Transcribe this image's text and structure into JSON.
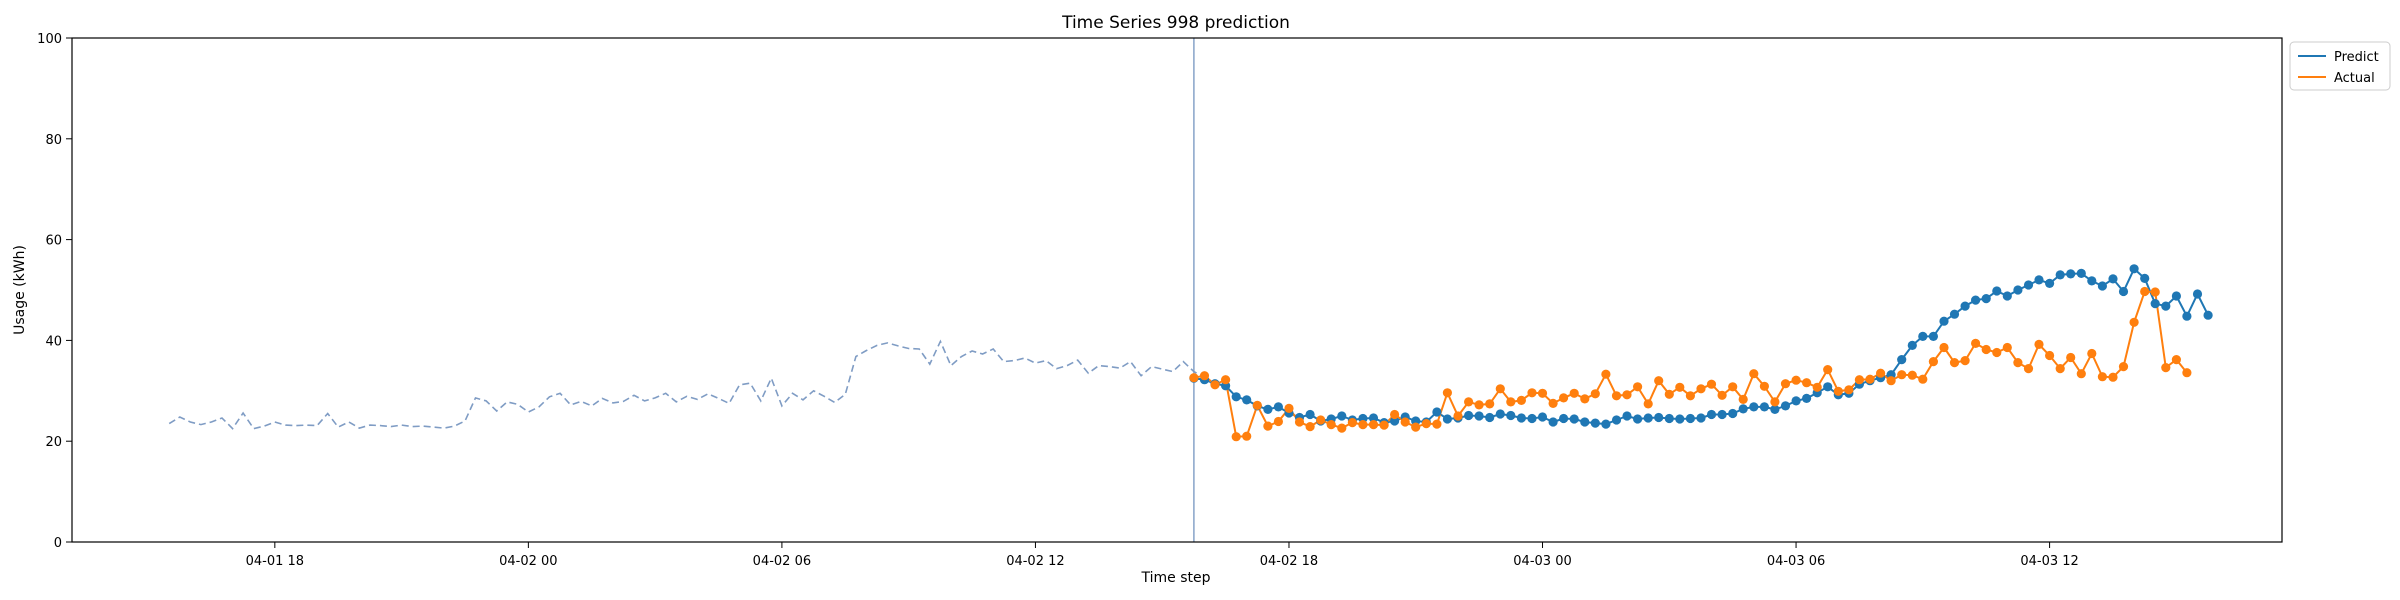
{
  "colors": {
    "predict": "#1f77b4",
    "actual": "#ff7f0e",
    "history": "#7f9cc4",
    "split_line": "#7f9cc4"
  },
  "chart_data": {
    "type": "line",
    "title": "Time Series 998 prediction",
    "xlabel": "Time step",
    "ylabel": "Usage (kWh)",
    "x_unit": "hours",
    "x_ticks": [
      {
        "label": "04-01 18",
        "x": 0
      },
      {
        "label": "04-02 00",
        "x": 6
      },
      {
        "label": "04-02 06",
        "x": 12
      },
      {
        "label": "04-02 12",
        "x": 18
      },
      {
        "label": "04-02 18",
        "x": 24
      },
      {
        "label": "04-03 00",
        "x": 30
      },
      {
        "label": "04-03 06",
        "x": 36
      },
      {
        "label": "04-03 12",
        "x": 42
      }
    ],
    "y_ticks": [
      0,
      20,
      40,
      60,
      80,
      100
    ],
    "xlim": [
      -4.8,
      47.5
    ],
    "ylim": [
      0,
      100
    ],
    "grid": false,
    "legend_position": "outside top-right",
    "split_x": 21.75,
    "history": {
      "x_start": -2.5,
      "step": 0.25,
      "values": [
        23.5,
        24.8,
        23.8,
        23.3,
        23.8,
        24.6,
        22.5,
        25.6,
        22.5,
        23.0,
        23.8,
        23.2,
        23.1,
        23.2,
        23.1,
        25.5,
        22.8,
        23.8,
        22.6,
        23.2,
        23.1,
        22.9,
        23.2,
        22.9,
        23.0,
        22.8,
        22.6,
        23.0,
        24.0,
        28.6,
        28.0,
        26.0,
        27.8,
        27.3,
        25.8,
        26.8,
        28.8,
        29.5,
        27.2,
        27.9,
        27.0,
        28.5,
        27.6,
        27.9,
        29.1,
        28.0,
        28.6,
        29.5,
        27.8,
        28.9,
        28.3,
        29.4,
        28.5,
        27.5,
        31.2,
        31.5,
        28.0,
        32.5,
        27.0,
        29.5,
        28.2,
        30.0,
        28.9,
        27.7,
        29.3,
        36.8,
        38.0,
        39.0,
        39.5,
        38.9,
        38.4,
        38.3,
        35.3,
        39.8,
        35.0,
        36.8,
        37.9,
        37.3,
        38.3,
        35.8,
        36.0,
        36.5,
        35.5,
        36.0,
        34.4,
        35.0,
        36.1,
        33.5,
        35.0,
        34.8,
        34.5,
        35.8,
        33.0,
        34.8,
        34.3,
        33.8,
        35.8,
        33.8,
        32.6
      ]
    },
    "series": [
      {
        "name": "Predict",
        "x_start": 21.75,
        "step": 0.25,
        "values": [
          32.5,
          32.2,
          31.4,
          31.0,
          28.8,
          28.2,
          27.0,
          26.3,
          26.8,
          25.6,
          24.7,
          25.3,
          24.0,
          24.4,
          25.0,
          24.2,
          24.5,
          24.6,
          23.7,
          24.0,
          24.8,
          24.0,
          23.8,
          25.8,
          24.4,
          24.6,
          25.1,
          25.0,
          24.7,
          25.4,
          25.1,
          24.6,
          24.5,
          24.8,
          23.8,
          24.5,
          24.4,
          23.8,
          23.6,
          23.4,
          24.2,
          25.0,
          24.4,
          24.6,
          24.7,
          24.5,
          24.4,
          24.5,
          24.6,
          25.3,
          25.3,
          25.5,
          26.4,
          26.8,
          26.8,
          26.3,
          27.0,
          28.0,
          28.5,
          29.6,
          30.8,
          29.2,
          29.5,
          31.3,
          32.0,
          32.6,
          33.2,
          36.2,
          39.0,
          40.8,
          40.8,
          43.8,
          45.2,
          46.8,
          48.0,
          48.3,
          49.8,
          48.8,
          50.0,
          51.0,
          52.0,
          51.3,
          53.0,
          53.2,
          53.3,
          51.8,
          50.8,
          52.2,
          49.7,
          54.2,
          52.3,
          47.3,
          46.8,
          48.8,
          44.8,
          49.2,
          45.0
        ]
      },
      {
        "name": "Actual",
        "x_start": 21.75,
        "step": 0.25,
        "values": [
          32.6,
          33.0,
          31.2,
          32.2,
          20.9,
          21.0,
          27.1,
          23.0,
          23.9,
          26.5,
          23.8,
          22.9,
          24.2,
          23.3,
          22.6,
          23.7,
          23.3,
          23.3,
          23.2,
          25.3,
          23.8,
          22.8,
          23.5,
          23.4,
          29.6,
          25.0,
          27.8,
          27.2,
          27.4,
          30.4,
          27.8,
          28.1,
          29.6,
          29.5,
          27.5,
          28.6,
          29.5,
          28.4,
          29.4,
          33.3,
          29.0,
          29.2,
          30.8,
          27.4,
          32.0,
          29.3,
          30.7,
          29.0,
          30.4,
          31.3,
          29.1,
          30.8,
          28.3,
          33.4,
          30.9,
          27.8,
          31.4,
          32.1,
          31.6,
          30.7,
          34.2,
          29.9,
          30.2,
          32.2,
          32.3,
          33.5,
          32.0,
          33.2,
          33.1,
          32.3,
          35.8,
          38.6,
          35.6,
          36.0,
          39.4,
          38.2,
          37.6,
          38.6,
          35.6,
          34.4,
          39.2,
          37.0,
          34.4,
          36.6,
          33.4,
          37.4,
          32.8,
          32.7,
          34.8,
          43.6,
          49.7,
          49.6,
          34.6,
          36.2,
          33.6
        ]
      }
    ]
  }
}
